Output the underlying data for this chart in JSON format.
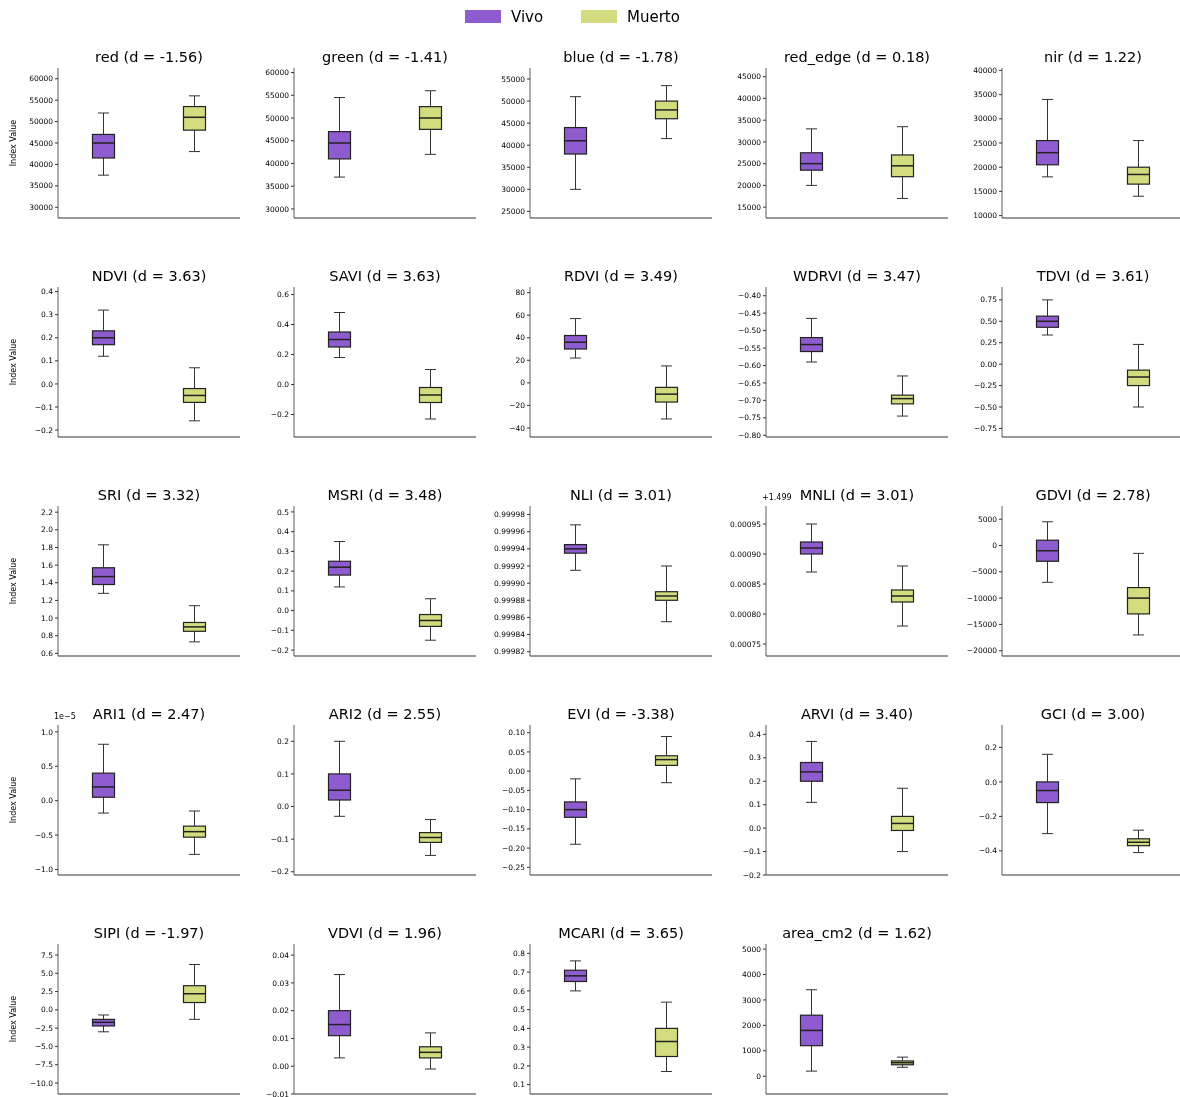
{
  "chart_data": [
    {
      "type": "box",
      "title": "red (d = -1.56)",
      "ylabel": "Index Value",
      "legend": "top",
      "categories": [
        null,
        null
      ],
      "ylim": [
        27500,
        62500
      ],
      "yticks": [
        30000,
        35000,
        40000,
        45000,
        50000,
        55000,
        60000
      ],
      "series": [
        {
          "name": "Vivo",
          "color": "#8e5ccf",
          "boxes": [
            {
              "low": 37500,
              "q1": 41500,
              "median": 45000,
              "q3": 47000,
              "high": 52000
            },
            null
          ]
        },
        {
          "name": "Muerto",
          "color": "#d3dc7e",
          "boxes": [
            null,
            {
              "low": 43000,
              "q1": 48000,
              "median": 51000,
              "q3": 53500,
              "high": 56000
            }
          ]
        }
      ]
    },
    {
      "type": "box",
      "title": "green (d = -1.41)",
      "categories": [
        null,
        null
      ],
      "ylim": [
        28000,
        61000
      ],
      "yticks": [
        30000,
        35000,
        40000,
        45000,
        50000,
        55000,
        60000
      ],
      "series": [
        {
          "name": "Vivo",
          "color": "#8e5ccf",
          "boxes": [
            {
              "low": 37000,
              "q1": 41000,
              "median": 44500,
              "q3": 47000,
              "high": 54500
            },
            null
          ]
        },
        {
          "name": "Muerto",
          "color": "#d3dc7e",
          "boxes": [
            null,
            {
              "low": 42000,
              "q1": 47500,
              "median": 50000,
              "q3": 52500,
              "high": 56000
            }
          ]
        }
      ]
    },
    {
      "type": "box",
      "title": "blue (d = -1.78)",
      "categories": [
        null,
        null
      ],
      "ylim": [
        23500,
        57500
      ],
      "yticks": [
        25000,
        30000,
        35000,
        40000,
        45000,
        50000,
        55000
      ],
      "series": [
        {
          "name": "Vivo",
          "color": "#8e5ccf",
          "boxes": [
            {
              "low": 30000,
              "q1": 38000,
              "median": 41000,
              "q3": 44000,
              "high": 51000
            },
            null
          ]
        },
        {
          "name": "Muerto",
          "color": "#d3dc7e",
          "boxes": [
            null,
            {
              "low": 41500,
              "q1": 46000,
              "median": 48000,
              "q3": 50000,
              "high": 53500
            }
          ]
        }
      ]
    },
    {
      "type": "box",
      "title": "red_edge (d = 0.18)",
      "categories": [
        null,
        null
      ],
      "ylim": [
        12500,
        47000
      ],
      "yticks": [
        15000,
        20000,
        25000,
        30000,
        35000,
        40000,
        45000
      ],
      "series": [
        {
          "name": "Vivo",
          "color": "#8e5ccf",
          "boxes": [
            {
              "low": 20000,
              "q1": 23500,
              "median": 25000,
              "q3": 27500,
              "high": 33000
            },
            null
          ]
        },
        {
          "name": "Muerto",
          "color": "#d3dc7e",
          "boxes": [
            null,
            {
              "low": 17000,
              "q1": 22000,
              "median": 24500,
              "q3": 27000,
              "high": 33500
            }
          ]
        }
      ]
    },
    {
      "type": "box",
      "title": "nir (d = 1.22)",
      "categories": [
        null,
        null
      ],
      "ylim": [
        9500,
        40500
      ],
      "yticks": [
        10000,
        15000,
        20000,
        25000,
        30000,
        35000,
        40000
      ],
      "series": [
        {
          "name": "Vivo",
          "color": "#8e5ccf",
          "boxes": [
            {
              "low": 18000,
              "q1": 20500,
              "median": 23000,
              "q3": 25500,
              "high": 34000
            },
            null
          ]
        },
        {
          "name": "Muerto",
          "color": "#d3dc7e",
          "boxes": [
            null,
            {
              "low": 14000,
              "q1": 16500,
              "median": 18500,
              "q3": 20000,
              "high": 25500
            }
          ]
        }
      ]
    },
    {
      "type": "box",
      "title": "NDVI (d = 3.63)",
      "ylabel": "Index Value",
      "categories": [
        null,
        null
      ],
      "ylim": [
        -0.23,
        0.42
      ],
      "yticks": [
        {
          "value": -0.2,
          "label": "−0.2"
        },
        {
          "value": -0.1,
          "label": "−0.1"
        },
        {
          "value": 0,
          "label": "0.0"
        },
        0.1,
        0.2,
        0.3,
        0.4
      ],
      "series": [
        {
          "name": "Vivo",
          "color": "#8e5ccf",
          "boxes": [
            {
              "low": 0.12,
              "q1": 0.17,
              "median": 0.2,
              "q3": 0.23,
              "high": 0.32
            },
            null
          ]
        },
        {
          "name": "Muerto",
          "color": "#d3dc7e",
          "boxes": [
            null,
            {
              "low": -0.16,
              "q1": -0.08,
              "median": -0.05,
              "q3": -0.02,
              "high": 0.07
            }
          ]
        }
      ]
    },
    {
      "type": "box",
      "title": "SAVI (d = 3.63)",
      "categories": [
        null,
        null
      ],
      "ylim": [
        -0.35,
        0.65
      ],
      "yticks": [
        {
          "value": -0.2,
          "label": "−0.2"
        },
        {
          "value": 0,
          "label": "0.0"
        },
        0.2,
        0.4,
        0.6
      ],
      "series": [
        {
          "name": "Vivo",
          "color": "#8e5ccf",
          "boxes": [
            {
              "low": 0.18,
              "q1": 0.25,
              "median": 0.3,
              "q3": 0.35,
              "high": 0.48
            },
            null
          ]
        },
        {
          "name": "Muerto",
          "color": "#d3dc7e",
          "boxes": [
            null,
            {
              "low": -0.23,
              "q1": -0.12,
              "median": -0.07,
              "q3": -0.02,
              "high": 0.1
            }
          ]
        }
      ]
    },
    {
      "type": "box",
      "title": "RDVI (d = 3.49)",
      "categories": [
        null,
        null
      ],
      "ylim": [
        -48,
        85
      ],
      "yticks": [
        {
          "value": -40,
          "label": "−40"
        },
        {
          "value": -20,
          "label": "−20"
        },
        0,
        20,
        40,
        60,
        80
      ],
      "series": [
        {
          "name": "Vivo",
          "color": "#8e5ccf",
          "boxes": [
            {
              "low": 22,
              "q1": 30,
              "median": 36,
              "q3": 42,
              "high": 57
            },
            null
          ]
        },
        {
          "name": "Muerto",
          "color": "#d3dc7e",
          "boxes": [
            null,
            {
              "low": -32,
              "q1": -17,
              "median": -10,
              "q3": -4,
              "high": 15
            }
          ]
        }
      ]
    },
    {
      "type": "box",
      "title": "WDRVI (d = 3.47)",
      "categories": [
        null,
        null
      ],
      "ylim": [
        -0.805,
        -0.375
      ],
      "yticks": [
        {
          "value": -0.8,
          "label": "−0.80"
        },
        {
          "value": -0.75,
          "label": "−0.75"
        },
        {
          "value": -0.7,
          "label": "−0.70"
        },
        {
          "value": -0.65,
          "label": "−0.65"
        },
        {
          "value": -0.6,
          "label": "−0.60"
        },
        {
          "value": -0.55,
          "label": "−0.55"
        },
        {
          "value": -0.5,
          "label": "−0.50"
        },
        {
          "value": -0.45,
          "label": "−0.45"
        },
        {
          "value": -0.4,
          "label": "−0.40"
        }
      ],
      "series": [
        {
          "name": "Vivo",
          "color": "#8e5ccf",
          "boxes": [
            {
              "low": -0.59,
              "q1": -0.56,
              "median": -0.54,
              "q3": -0.52,
              "high": -0.465
            },
            null
          ]
        },
        {
          "name": "Muerto",
          "color": "#d3dc7e",
          "boxes": [
            null,
            {
              "low": -0.745,
              "q1": -0.71,
              "median": -0.695,
              "q3": -0.685,
              "high": -0.63
            }
          ]
        }
      ]
    },
    {
      "type": "box",
      "title": "TDVI (d = 3.61)",
      "categories": [
        null,
        null
      ],
      "ylim": [
        -0.85,
        0.9
      ],
      "yticks": [
        {
          "value": -0.75,
          "label": "−0.75"
        },
        {
          "value": -0.5,
          "label": "−0.50"
        },
        {
          "value": -0.25,
          "label": "−0.25"
        },
        {
          "value": 0,
          "label": "0.00"
        },
        0.25,
        {
          "value": 0.5,
          "label": "0.50"
        },
        0.75
      ],
      "series": [
        {
          "name": "Vivo",
          "color": "#8e5ccf",
          "boxes": [
            {
              "low": 0.34,
              "q1": 0.43,
              "median": 0.5,
              "q3": 0.56,
              "high": 0.75
            },
            null
          ]
        },
        {
          "name": "Muerto",
          "color": "#d3dc7e",
          "boxes": [
            null,
            {
              "low": -0.5,
              "q1": -0.25,
              "median": -0.15,
              "q3": -0.07,
              "high": 0.23
            }
          ]
        }
      ]
    },
    {
      "type": "box",
      "title": "SRI (d = 3.32)",
      "ylabel": "Index Value",
      "categories": [
        null,
        null
      ],
      "ylim": [
        0.57,
        2.27
      ],
      "yticks": [
        0.6,
        0.8,
        {
          "value": 1,
          "label": "1.0"
        },
        1.2,
        1.4,
        1.6,
        1.8,
        {
          "value": 2,
          "label": "2.0"
        },
        2.2
      ],
      "series": [
        {
          "name": "Vivo",
          "color": "#8e5ccf",
          "boxes": [
            {
              "low": 1.28,
              "q1": 1.38,
              "median": 1.47,
              "q3": 1.57,
              "high": 1.83
            },
            null
          ]
        },
        {
          "name": "Muerto",
          "color": "#d3dc7e",
          "boxes": [
            null,
            {
              "low": 0.73,
              "q1": 0.85,
              "median": 0.9,
              "q3": 0.95,
              "high": 1.14
            }
          ]
        }
      ]
    },
    {
      "type": "box",
      "title": "MSRI (d = 3.48)",
      "categories": [
        null,
        null
      ],
      "ylim": [
        -0.23,
        0.53
      ],
      "yticks": [
        {
          "value": -0.2,
          "label": "−0.2"
        },
        {
          "value": -0.1,
          "label": "−0.1"
        },
        {
          "value": 0,
          "label": "0.0"
        },
        0.1,
        0.2,
        0.3,
        0.4,
        0.5
      ],
      "series": [
        {
          "name": "Vivo",
          "color": "#8e5ccf",
          "boxes": [
            {
              "low": 0.12,
              "q1": 0.18,
              "median": 0.22,
              "q3": 0.25,
              "high": 0.35
            },
            null
          ]
        },
        {
          "name": "Muerto",
          "color": "#d3dc7e",
          "boxes": [
            null,
            {
              "low": -0.15,
              "q1": -0.08,
              "median": -0.05,
              "q3": -0.02,
              "high": 0.06
            }
          ]
        }
      ]
    },
    {
      "type": "box",
      "title": "NLI (d = 3.01)",
      "categories": [
        null,
        null
      ],
      "ylim": [
        0.999815,
        0.99999
      ],
      "yticks": [
        0.99982,
        0.99984,
        0.99986,
        0.99988,
        {
          "value": 0.9999,
          "label": "0.99990"
        },
        0.99992,
        0.99994,
        0.99996,
        0.99998
      ],
      "series": [
        {
          "name": "Vivo",
          "color": "#8e5ccf",
          "boxes": [
            {
              "low": 0.999915,
              "q1": 0.999935,
              "median": 0.99994,
              "q3": 0.999945,
              "high": 0.999968
            },
            null
          ]
        },
        {
          "name": "Muerto",
          "color": "#d3dc7e",
          "boxes": [
            null,
            {
              "low": 0.999855,
              "q1": 0.99988,
              "median": 0.999885,
              "q3": 0.99989,
              "high": 0.99992
            }
          ]
        }
      ]
    },
    {
      "type": "box",
      "title": "MNLI (d = 3.01)",
      "annotations": [
        "+1.499"
      ],
      "categories": [
        null,
        null
      ],
      "ylim": [
        0.00073,
        0.00098
      ],
      "yticks": [
        {
          "value": 0.00075,
          "label": "0.00075"
        },
        {
          "value": 0.0008,
          "label": "0.00080"
        },
        {
          "value": 0.00085,
          "label": "0.00085"
        },
        {
          "value": 0.0009,
          "label": "0.00090"
        },
        {
          "value": 0.00095,
          "label": "0.00095"
        }
      ],
      "series": [
        {
          "name": "Vivo",
          "color": "#8e5ccf",
          "boxes": [
            {
              "low": 0.00087,
              "q1": 0.0009,
              "median": 0.00091,
              "q3": 0.00092,
              "high": 0.00095
            },
            null
          ]
        },
        {
          "name": "Muerto",
          "color": "#d3dc7e",
          "boxes": [
            null,
            {
              "low": 0.00078,
              "q1": 0.00082,
              "median": 0.00083,
              "q3": 0.00084,
              "high": 0.00088
            }
          ]
        }
      ]
    },
    {
      "type": "box",
      "title": "GDVI (d = 2.78)",
      "categories": [
        null,
        null
      ],
      "ylim": [
        -21000,
        7500
      ],
      "yticks": [
        {
          "value": -20000,
          "label": "−20000"
        },
        {
          "value": -15000,
          "label": "−15000"
        },
        {
          "value": -10000,
          "label": "−10000"
        },
        {
          "value": -5000,
          "label": "−5000"
        },
        0,
        5000
      ],
      "series": [
        {
          "name": "Vivo",
          "color": "#8e5ccf",
          "boxes": [
            {
              "low": -7000,
              "q1": -3000,
              "median": -1000,
              "q3": 1000,
              "high": 4500
            },
            null
          ]
        },
        {
          "name": "Muerto",
          "color": "#d3dc7e",
          "boxes": [
            null,
            {
              "low": -17000,
              "q1": -13000,
              "median": -10000,
              "q3": -8000,
              "high": -1500
            }
          ]
        }
      ]
    },
    {
      "type": "box",
      "title": "ARI1 (d = 2.47)",
      "ylabel": "Index Value",
      "annotations": [
        "1e−5"
      ],
      "categories": [
        null,
        null
      ],
      "ylim": [
        -1.08,
        1.1
      ],
      "yticks": [
        {
          "value": -1,
          "label": "−1.0"
        },
        {
          "value": -0.5,
          "label": "−0.5"
        },
        {
          "value": 0,
          "label": "0.0"
        },
        0.5,
        {
          "value": 1,
          "label": "1.0"
        }
      ],
      "series": [
        {
          "name": "Vivo",
          "color": "#8e5ccf",
          "boxes": [
            {
              "low": -0.18,
              "q1": 0.05,
              "median": 0.2,
              "q3": 0.4,
              "high": 0.82
            },
            null
          ]
        },
        {
          "name": "Muerto",
          "color": "#d3dc7e",
          "boxes": [
            null,
            {
              "low": -0.78,
              "q1": -0.53,
              "median": -0.45,
              "q3": -0.37,
              "high": -0.15
            }
          ]
        }
      ]
    },
    {
      "type": "box",
      "title": "ARI2 (d = 2.55)",
      "categories": [
        null,
        null
      ],
      "ylim": [
        -0.21,
        0.25
      ],
      "yticks": [
        {
          "value": -0.2,
          "label": "−0.2"
        },
        {
          "value": -0.1,
          "label": "−0.1"
        },
        {
          "value": 0,
          "label": "0.0"
        },
        0.1,
        0.2
      ],
      "series": [
        {
          "name": "Vivo",
          "color": "#8e5ccf",
          "boxes": [
            {
              "low": -0.03,
              "q1": 0.02,
              "median": 0.05,
              "q3": 0.1,
              "high": 0.2
            },
            null
          ]
        },
        {
          "name": "Muerto",
          "color": "#d3dc7e",
          "boxes": [
            null,
            {
              "low": -0.15,
              "q1": -0.11,
              "median": -0.095,
              "q3": -0.08,
              "high": -0.04
            }
          ]
        }
      ]
    },
    {
      "type": "box",
      "title": "EVI (d = -3.38)",
      "categories": [
        null,
        null
      ],
      "ylim": [
        -0.27,
        0.12
      ],
      "yticks": [
        {
          "value": -0.25,
          "label": "−0.25"
        },
        {
          "value": -0.2,
          "label": "−0.20"
        },
        {
          "value": -0.15,
          "label": "−0.15"
        },
        {
          "value": -0.1,
          "label": "−0.10"
        },
        {
          "value": -0.05,
          "label": "−0.05"
        },
        {
          "value": 0,
          "label": "0.00"
        },
        0.05,
        {
          "value": 0.1,
          "label": "0.10"
        }
      ],
      "series": [
        {
          "name": "Vivo",
          "color": "#8e5ccf",
          "boxes": [
            {
              "low": -0.19,
              "q1": -0.12,
              "median": -0.1,
              "q3": -0.08,
              "high": -0.02
            },
            null
          ]
        },
        {
          "name": "Muerto",
          "color": "#d3dc7e",
          "boxes": [
            null,
            {
              "low": -0.03,
              "q1": 0.015,
              "median": 0.03,
              "q3": 0.04,
              "high": 0.09
            }
          ]
        }
      ]
    },
    {
      "type": "box",
      "title": "ARVI (d = 3.40)",
      "categories": [
        null,
        null
      ],
      "ylim": [
        -0.2,
        0.44
      ],
      "yticks": [
        {
          "value": -0.2,
          "label": "−0.2"
        },
        {
          "value": -0.1,
          "label": "−0.1"
        },
        {
          "value": 0,
          "label": "0.0"
        },
        0.1,
        0.2,
        0.3,
        0.4
      ],
      "series": [
        {
          "name": "Vivo",
          "color": "#8e5ccf",
          "boxes": [
            {
              "low": 0.11,
              "q1": 0.2,
              "median": 0.24,
              "q3": 0.28,
              "high": 0.37
            },
            null
          ]
        },
        {
          "name": "Muerto",
          "color": "#d3dc7e",
          "boxes": [
            null,
            {
              "low": -0.1,
              "q1": -0.01,
              "median": 0.02,
              "q3": 0.05,
              "high": 0.17
            }
          ]
        }
      ]
    },
    {
      "type": "box",
      "title": "GCI (d = 3.00)",
      "categories": [
        null,
        null
      ],
      "ylim": [
        -0.54,
        0.33
      ],
      "yticks": [
        {
          "value": -0.4,
          "label": "−0.4"
        },
        {
          "value": -0.2,
          "label": "−0.2"
        },
        {
          "value": 0,
          "label": "0.0"
        },
        0.2
      ],
      "series": [
        {
          "name": "Vivo",
          "color": "#8e5ccf",
          "boxes": [
            {
              "low": -0.3,
              "q1": -0.12,
              "median": -0.05,
              "q3": 0,
              "high": 0.16
            },
            null
          ]
        },
        {
          "name": "Muerto",
          "color": "#d3dc7e",
          "boxes": [
            null,
            {
              "low": -0.41,
              "q1": -0.37,
              "median": -0.35,
              "q3": -0.33,
              "high": -0.28
            }
          ]
        }
      ]
    },
    {
      "type": "box",
      "title": "SIPI (d = -1.97)",
      "ylabel": "Index Value",
      "categories": [
        null,
        null
      ],
      "ylim": [
        -11.5,
        9
      ],
      "yticks": [
        {
          "value": -10,
          "label": "−10.0"
        },
        {
          "value": -7.5,
          "label": "−7.5"
        },
        {
          "value": -5,
          "label": "−5.0"
        },
        {
          "value": -2.5,
          "label": "−2.5"
        },
        {
          "value": 0,
          "label": "0.0"
        },
        2.5,
        {
          "value": 5,
          "label": "5.0"
        },
        7.5
      ],
      "series": [
        {
          "name": "Vivo",
          "color": "#8e5ccf",
          "boxes": [
            {
              "low": -3,
              "q1": -2.2,
              "median": -1.7,
              "q3": -1.3,
              "high": -0.7
            },
            null
          ]
        },
        {
          "name": "Muerto",
          "color": "#d3dc7e",
          "boxes": [
            null,
            {
              "low": -1.3,
              "q1": 1,
              "median": 2.2,
              "q3": 3.3,
              "high": 6.2
            }
          ]
        }
      ]
    },
    {
      "type": "box",
      "title": "VDVI (d = 1.96)",
      "categories": [
        null,
        null
      ],
      "ylim": [
        -0.01,
        0.044
      ],
      "yticks": [
        {
          "value": -0.01,
          "label": "−0.01"
        },
        {
          "value": 0,
          "label": "0.00"
        },
        0.01,
        0.02,
        0.03,
        0.04
      ],
      "series": [
        {
          "name": "Vivo",
          "color": "#8e5ccf",
          "boxes": [
            {
              "low": 0.003,
              "q1": 0.011,
              "median": 0.015,
              "q3": 0.02,
              "high": 0.033
            },
            null
          ]
        },
        {
          "name": "Muerto",
          "color": "#d3dc7e",
          "boxes": [
            null,
            {
              "low": -0.001,
              "q1": 0.003,
              "median": 0.005,
              "q3": 0.007,
              "high": 0.012
            }
          ]
        }
      ]
    },
    {
      "type": "box",
      "title": "MCARI (d = 3.65)",
      "categories": [
        null,
        null
      ],
      "ylim": [
        0.05,
        0.85
      ],
      "yticks": [
        0.1,
        0.2,
        0.3,
        0.4,
        0.5,
        0.6,
        0.7,
        0.8
      ],
      "series": [
        {
          "name": "Vivo",
          "color": "#8e5ccf",
          "boxes": [
            {
              "low": 0.6,
              "q1": 0.65,
              "median": 0.68,
              "q3": 0.71,
              "high": 0.76
            },
            null
          ]
        },
        {
          "name": "Muerto",
          "color": "#d3dc7e",
          "boxes": [
            null,
            {
              "low": 0.17,
              "q1": 0.25,
              "median": 0.33,
              "q3": 0.4,
              "high": 0.54
            }
          ]
        }
      ]
    },
    {
      "type": "box",
      "title": "area_cm2 (d = 1.62)",
      "categories": [
        null,
        null
      ],
      "ylim": [
        -700,
        5200
      ],
      "yticks": [
        0,
        1000,
        2000,
        3000,
        4000,
        5000
      ],
      "series": [
        {
          "name": "Vivo",
          "color": "#8e5ccf",
          "boxes": [
            {
              "low": 200,
              "q1": 1200,
              "median": 1800,
              "q3": 2400,
              "high": 3400
            },
            null
          ]
        },
        {
          "name": "Muerto",
          "color": "#d3dc7e",
          "boxes": [
            null,
            {
              "low": 350,
              "q1": 450,
              "median": 530,
              "q3": 600,
              "high": 750
            }
          ]
        }
      ]
    }
  ]
}
